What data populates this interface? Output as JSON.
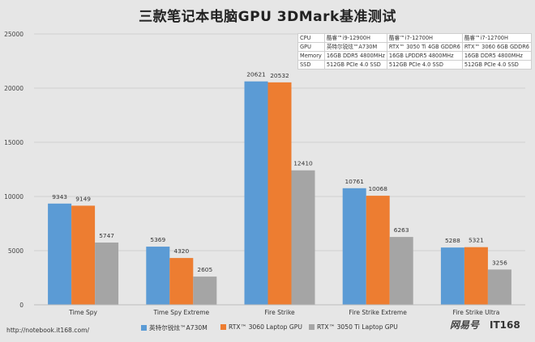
{
  "chart_data": {
    "type": "bar",
    "title": "三款笔记本电脑GPU 3DMark基准测试",
    "categories": [
      "Time Spy",
      "Time Spy Extreme",
      "Fire Strike",
      "Fire Strike Extreme",
      "Fire Strike Ultra"
    ],
    "series": [
      {
        "name": "英特尔锐炫™A730M",
        "color": "#5b9bd5",
        "values": [
          9343,
          5369,
          20621,
          10761,
          5288
        ]
      },
      {
        "name": "RTX™ 3060 Laptop GPU",
        "color": "#ed7d31",
        "values": [
          9149,
          4320,
          20532,
          10068,
          5321
        ]
      },
      {
        "name": "RTX™ 3050 Ti Laptop GPU",
        "color": "#a5a5a5",
        "values": [
          5747,
          2605,
          12410,
          6263,
          3256
        ]
      }
    ],
    "ylim": [
      0,
      25000
    ],
    "yticks": [
      0,
      5000,
      10000,
      15000,
      20000,
      25000
    ],
    "grid": true,
    "legend_position": "bottom",
    "xlabel": "",
    "ylabel": ""
  },
  "spec_table": {
    "rows": [
      [
        "CPU",
        "酷睿™i9-12900H",
        "酷睿™i7-12700H",
        "酷睿™i7-12700H"
      ],
      [
        "GPU",
        "英特尔锐炫™A730M",
        "RTX™ 3050 Ti 4GB GDDR6",
        "RTX™ 3060 6GB GDDR6"
      ],
      [
        "Memory",
        "16GB DDR5 4800MHz",
        "16GB LPDDR5 4800MHz",
        "16GB DDR5 4800MHz"
      ],
      [
        "SSD",
        "512GB PCIe 4.0 SSD",
        "512GB PCIe 4.0 SSD",
        "512GB PCIe 4.0 SSD"
      ]
    ]
  },
  "source_text": "http://notebook.it168.com/",
  "watermark": {
    "part1": "网易号",
    "part2": "IT168"
  }
}
